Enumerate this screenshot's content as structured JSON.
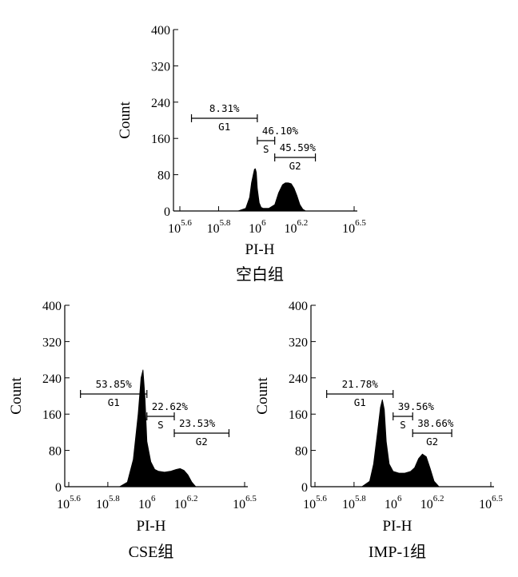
{
  "chart_data": [
    {
      "type": "area",
      "panel": "top",
      "caption": "空白组",
      "xlabel": "PI-H",
      "ylabel": "Count",
      "xscale": "log10",
      "xlim": [
        5.6,
        6.5
      ],
      "ylim": [
        0,
        400
      ],
      "yticks": [
        "0",
        "80",
        "160",
        "240",
        "320",
        "400"
      ],
      "xticks": [
        {
          "base": "10",
          "exp": "5.6",
          "value": 5.6
        },
        {
          "base": "10",
          "exp": "5.8",
          "value": 5.8
        },
        {
          "base": "10",
          "exp": "6",
          "value": 6.0
        },
        {
          "base": "10",
          "exp": "6.2",
          "value": 6.2
        },
        {
          "base": "10",
          "exp": "6.5",
          "value": 6.5
        }
      ],
      "gates": [
        {
          "name": "G1",
          "percent": "8.31%",
          "range": [
            5.66,
            6.0
          ]
        },
        {
          "name": "S",
          "percent": "46.10%",
          "range": [
            6.0,
            6.09
          ]
        },
        {
          "name": "G2",
          "percent": "45.59%",
          "range": [
            6.09,
            6.3
          ]
        }
      ],
      "histogram": {
        "x": [
          5.9,
          5.94,
          5.96,
          5.97,
          5.98,
          5.985,
          5.99,
          5.995,
          6.0,
          6.01,
          6.02,
          6.03,
          6.06,
          6.09,
          6.11,
          6.13,
          6.145,
          6.16,
          6.175,
          6.19,
          6.205,
          6.22,
          6.235,
          6.25
        ],
        "y": [
          0,
          6,
          30,
          62,
          82,
          92,
          93,
          85,
          50,
          18,
          8,
          6,
          6,
          14,
          40,
          58,
          62,
          62,
          60,
          50,
          34,
          14,
          4,
          0
        ]
      }
    },
    {
      "type": "area",
      "panel": "bottom-left",
      "caption": "CSE组",
      "xlabel": "PI-H",
      "ylabel": "Count",
      "xscale": "log10",
      "xlim": [
        5.6,
        6.5
      ],
      "ylim": [
        0,
        400
      ],
      "yticks": [
        "0",
        "80",
        "160",
        "240",
        "320",
        "400"
      ],
      "xticks": [
        {
          "base": "10",
          "exp": "5.6",
          "value": 5.6
        },
        {
          "base": "10",
          "exp": "5.8",
          "value": 5.8
        },
        {
          "base": "10",
          "exp": "6",
          "value": 6.0
        },
        {
          "base": "10",
          "exp": "6.2",
          "value": 6.2
        },
        {
          "base": "10",
          "exp": "6.5",
          "value": 6.5
        }
      ],
      "gates": [
        {
          "name": "G1",
          "percent": "53.85%",
          "range": [
            5.66,
            6.0
          ]
        },
        {
          "name": "S",
          "percent": "22.62%",
          "range": [
            6.0,
            6.14
          ]
        },
        {
          "name": "G2",
          "percent": "23.53%",
          "range": [
            6.14,
            6.42
          ]
        }
      ],
      "histogram": {
        "x": [
          5.86,
          5.9,
          5.93,
          5.955,
          5.97,
          5.98,
          5.99,
          6.0,
          6.02,
          6.04,
          6.06,
          6.09,
          6.12,
          6.15,
          6.17,
          6.19,
          6.21,
          6.23,
          6.25
        ],
        "y": [
          0,
          10,
          60,
          160,
          240,
          258,
          200,
          100,
          55,
          38,
          34,
          32,
          34,
          38,
          40,
          36,
          26,
          10,
          0
        ]
      }
    },
    {
      "type": "area",
      "panel": "bottom-right",
      "caption": "IMP-1组",
      "xlabel": "PI-H",
      "ylabel": "Count",
      "xscale": "log10",
      "xlim": [
        5.6,
        6.5
      ],
      "ylim": [
        0,
        400
      ],
      "yticks": [
        "0",
        "80",
        "160",
        "240",
        "320",
        "400"
      ],
      "xticks": [
        {
          "base": "10",
          "exp": "5.6",
          "value": 5.6
        },
        {
          "base": "10",
          "exp": "5.8",
          "value": 5.8
        },
        {
          "base": "10",
          "exp": "6",
          "value": 6.0
        },
        {
          "base": "10",
          "exp": "6.2",
          "value": 6.2
        },
        {
          "base": "10",
          "exp": "6.5",
          "value": 6.5
        }
      ],
      "gates": [
        {
          "name": "G1",
          "percent": "21.78%",
          "range": [
            5.66,
            6.0
          ]
        },
        {
          "name": "S",
          "percent": "39.56%",
          "range": [
            6.0,
            6.1
          ]
        },
        {
          "name": "G2",
          "percent": "38.66%",
          "range": [
            6.1,
            6.3
          ]
        }
      ],
      "histogram": {
        "x": [
          5.84,
          5.88,
          5.9,
          5.92,
          5.935,
          5.945,
          5.955,
          5.965,
          5.98,
          6.0,
          6.03,
          6.06,
          6.09,
          6.11,
          6.13,
          6.15,
          6.17,
          6.19,
          6.21,
          6.235
        ],
        "y": [
          0,
          12,
          50,
          120,
          175,
          192,
          170,
          100,
          50,
          34,
          30,
          30,
          34,
          42,
          62,
          72,
          66,
          40,
          12,
          0
        ]
      }
    }
  ]
}
